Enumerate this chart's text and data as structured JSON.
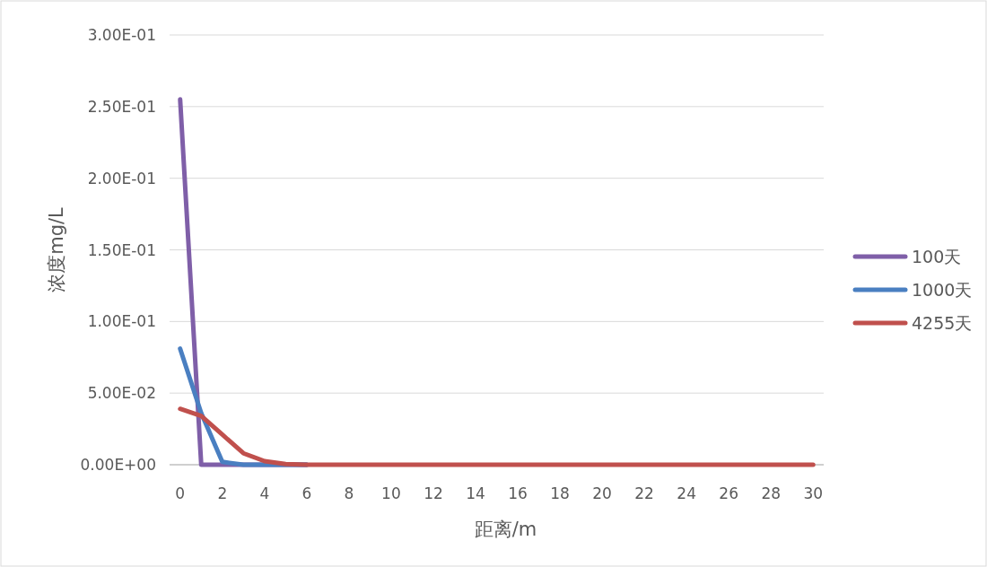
{
  "chart_data": {
    "type": "line",
    "xlabel": "距离/m",
    "ylabel": "浓度mg/L",
    "x": [
      0,
      1,
      2,
      3,
      4,
      5,
      6,
      7,
      8,
      9,
      10,
      11,
      12,
      13,
      14,
      15,
      16,
      17,
      18,
      19,
      20,
      21,
      22,
      23,
      24,
      25,
      26,
      27,
      28,
      29,
      30
    ],
    "series": [
      {
        "name": "100天",
        "color": "#7f5fa8",
        "values": [
          0.255,
          0,
          0,
          0,
          0,
          0,
          0,
          null,
          null,
          null,
          null,
          null,
          null,
          null,
          null,
          null,
          null,
          null,
          null,
          null,
          null,
          null,
          null,
          null,
          null,
          null,
          null,
          null,
          null,
          null,
          null
        ]
      },
      {
        "name": "1000天",
        "color": "#4a7fc1",
        "values": [
          0.081,
          0.036,
          0.002,
          0,
          0,
          0,
          0,
          null,
          null,
          null,
          null,
          null,
          null,
          null,
          null,
          null,
          null,
          null,
          null,
          null,
          null,
          null,
          null,
          null,
          null,
          null,
          null,
          null,
          null,
          null,
          null
        ]
      },
      {
        "name": "4255天",
        "color": "#c0504d",
        "values": [
          0.039,
          0.034,
          0.021,
          0.008,
          0.0025,
          0.0005,
          0,
          0,
          0,
          0,
          0,
          0,
          0,
          0,
          0,
          0,
          0,
          0,
          0,
          0,
          0,
          0,
          0,
          0,
          0,
          0,
          0,
          0,
          0,
          0,
          0
        ]
      }
    ],
    "xlim": [
      -0.5,
      30.5
    ],
    "xticks": [
      0,
      2,
      4,
      6,
      8,
      10,
      12,
      14,
      16,
      18,
      20,
      22,
      24,
      26,
      28,
      30
    ],
    "ylim": [
      0,
      0.3
    ],
    "yticks": [
      {
        "value": 0,
        "label": "0.00E+00"
      },
      {
        "value": 0.05,
        "label": "5.00E-02"
      },
      {
        "value": 0.1,
        "label": "1.00E-01"
      },
      {
        "value": 0.15,
        "label": "1.50E-01"
      },
      {
        "value": 0.2,
        "label": "2.00E-01"
      },
      {
        "value": 0.25,
        "label": "2.50E-01"
      },
      {
        "value": 0.3,
        "label": "3.00E-01"
      }
    ],
    "grid": "y",
    "legend": "right",
    "marker": "none",
    "line_style": "solid"
  }
}
